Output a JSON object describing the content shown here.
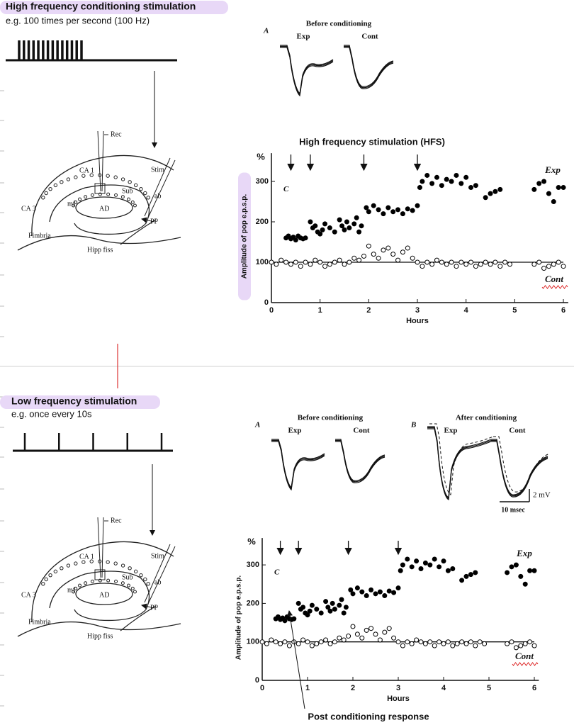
{
  "sections": [
    {
      "title": "High frequency conditioning stimulation",
      "subtitle": "e.g. 100 times per second (100 Hz)",
      "diagram": {
        "rec": "Rec",
        "ca1": "CA 1",
        "stim": "Stim",
        "sub": "Sub",
        "ab": "ab",
        "ca3": "CA 3",
        "mf": "mf",
        "ad": "AD",
        "pp": "PP",
        "fimbria": "Fimbria",
        "hipp_fiss": "Hipp fiss"
      },
      "traces": [
        {
          "panel": "A",
          "heading": "Before conditioning",
          "exp": "Exp",
          "cont": "Cont"
        }
      ]
    },
    {
      "title": "Low frequency stimulation",
      "subtitle": "e.g. once every 10s",
      "diagram": {
        "rec": "Rec",
        "ca1": "CA 1",
        "stim": "Stim",
        "sub": "Sub",
        "ab": "ab",
        "ca3": "CA 3",
        "mf": "mf",
        "ad": "AD",
        "pp": "PP",
        "fimbria": "Fimbria",
        "hipp_fiss": "Hipp fiss"
      },
      "traces": [
        {
          "panel": "A",
          "heading": "Before conditioning",
          "exp": "Exp",
          "cont": "Cont"
        },
        {
          "panel": "B",
          "heading": "After conditioning",
          "exp": "Exp",
          "cont": "Cont"
        }
      ],
      "scale_bar": {
        "voltage": "2 mV",
        "time": "10 msec"
      }
    }
  ],
  "chart_data": [
    {
      "type": "scatter",
      "title": "High frequency stimulation (HFS)",
      "panel": "C",
      "y_unit": "%",
      "x_label": "Hours",
      "y_label": "Amplitude of pop e.p.s.p.",
      "xlim": [
        0,
        6.1
      ],
      "ylim": [
        0,
        370
      ],
      "xticks": [
        0,
        1,
        2,
        3,
        4,
        5,
        6
      ],
      "yticks": [
        0,
        100,
        200,
        300
      ],
      "stimulus_times": [
        0.4,
        0.8,
        1.9,
        3.0
      ],
      "reference_line": 100,
      "series": [
        {
          "name": "Exp",
          "color": "#000000",
          "marker": "filled",
          "x": [
            0.3,
            0.35,
            0.4,
            0.45,
            0.5,
            0.55,
            0.6,
            0.65,
            0.7,
            0.8,
            0.85,
            0.9,
            0.95,
            1.0,
            1.05,
            1.1,
            1.2,
            1.3,
            1.4,
            1.45,
            1.5,
            1.55,
            1.6,
            1.7,
            1.75,
            1.8,
            1.85,
            1.95,
            2.0,
            2.1,
            2.2,
            2.3,
            2.4,
            2.5,
            2.6,
            2.7,
            2.8,
            2.9,
            3.0,
            3.05,
            3.1,
            3.2,
            3.3,
            3.4,
            3.5,
            3.6,
            3.7,
            3.8,
            3.9,
            4.0,
            4.1,
            4.2,
            4.4,
            4.5,
            4.6,
            4.7,
            5.4,
            5.5,
            5.6,
            5.7,
            5.8,
            5.9,
            6.0
          ],
          "values": [
            160,
            165,
            158,
            162,
            155,
            165,
            160,
            158,
            160,
            200,
            185,
            190,
            175,
            170,
            180,
            195,
            185,
            175,
            205,
            190,
            180,
            200,
            185,
            195,
            210,
            175,
            190,
            235,
            225,
            240,
            230,
            220,
            235,
            225,
            230,
            220,
            232,
            228,
            240,
            285,
            300,
            315,
            295,
            310,
            290,
            305,
            300,
            315,
            295,
            310,
            285,
            290,
            260,
            270,
            275,
            280,
            280,
            295,
            300,
            270,
            250,
            285,
            285
          ]
        },
        {
          "name": "Cont",
          "color": "#000000",
          "marker": "open",
          "x": [
            0.0,
            0.1,
            0.2,
            0.3,
            0.4,
            0.5,
            0.6,
            0.7,
            0.8,
            0.9,
            1.0,
            1.1,
            1.2,
            1.3,
            1.4,
            1.5,
            1.6,
            1.7,
            1.8,
            1.9,
            2.0,
            2.1,
            2.2,
            2.3,
            2.4,
            2.5,
            2.6,
            2.7,
            2.8,
            2.9,
            3.0,
            3.1,
            3.2,
            3.3,
            3.4,
            3.5,
            3.6,
            3.7,
            3.8,
            3.9,
            4.0,
            4.1,
            4.2,
            4.3,
            4.4,
            4.5,
            4.6,
            4.7,
            4.8,
            4.9,
            5.4,
            5.5,
            5.6,
            5.7,
            5.8,
            5.9,
            6.0
          ],
          "values": [
            100,
            95,
            105,
            100,
            95,
            100,
            90,
            100,
            95,
            105,
            100,
            90,
            95,
            100,
            105,
            95,
            100,
            110,
            105,
            115,
            140,
            120,
            110,
            130,
            135,
            120,
            105,
            125,
            135,
            110,
            100,
            90,
            100,
            95,
            105,
            100,
            95,
            100,
            90,
            100,
            95,
            100,
            90,
            95,
            100,
            95,
            100,
            90,
            100,
            95,
            95,
            100,
            85,
            90,
            95,
            100,
            90
          ]
        }
      ]
    },
    {
      "type": "scatter",
      "annotation": "Post conditioning response",
      "panel": "C",
      "y_unit": "%",
      "x_label": "Hours",
      "y_label": "Amplitude of pop e.p.s.p.",
      "xlim": [
        0,
        6.1
      ],
      "ylim": [
        0,
        370
      ],
      "xticks": [
        0,
        1,
        2,
        3,
        4,
        5,
        6
      ],
      "yticks": [
        0,
        100,
        200,
        300
      ],
      "stimulus_times": [
        0.4,
        0.8,
        1.9,
        3.0
      ],
      "reference_line": 100,
      "series": [
        {
          "name": "Exp",
          "color": "#000000",
          "marker": "filled",
          "x": [
            0.3,
            0.35,
            0.4,
            0.45,
            0.5,
            0.55,
            0.6,
            0.65,
            0.7,
            0.8,
            0.85,
            0.9,
            0.95,
            1.0,
            1.05,
            1.1,
            1.2,
            1.3,
            1.4,
            1.45,
            1.5,
            1.55,
            1.6,
            1.7,
            1.75,
            1.8,
            1.85,
            1.95,
            2.0,
            2.1,
            2.2,
            2.3,
            2.4,
            2.5,
            2.6,
            2.7,
            2.8,
            2.9,
            3.0,
            3.05,
            3.1,
            3.2,
            3.3,
            3.4,
            3.5,
            3.6,
            3.7,
            3.8,
            3.9,
            4.0,
            4.1,
            4.2,
            4.4,
            4.5,
            4.6,
            4.7,
            5.4,
            5.5,
            5.6,
            5.7,
            5.8,
            5.9,
            6.0
          ],
          "values": [
            160,
            165,
            158,
            162,
            155,
            165,
            160,
            158,
            160,
            200,
            185,
            190,
            175,
            170,
            180,
            195,
            185,
            175,
            205,
            190,
            180,
            200,
            185,
            195,
            210,
            175,
            190,
            235,
            225,
            240,
            230,
            220,
            235,
            225,
            230,
            220,
            232,
            228,
            240,
            285,
            300,
            315,
            295,
            310,
            290,
            305,
            300,
            315,
            295,
            310,
            285,
            290,
            260,
            270,
            275,
            280,
            280,
            295,
            300,
            270,
            250,
            285,
            285
          ]
        },
        {
          "name": "Cont",
          "color": "#000000",
          "marker": "open",
          "x": [
            0.0,
            0.1,
            0.2,
            0.3,
            0.4,
            0.5,
            0.6,
            0.7,
            0.8,
            0.9,
            1.0,
            1.1,
            1.2,
            1.3,
            1.4,
            1.5,
            1.6,
            1.7,
            1.8,
            1.9,
            2.0,
            2.1,
            2.2,
            2.3,
            2.4,
            2.5,
            2.6,
            2.7,
            2.8,
            2.9,
            3.0,
            3.1,
            3.2,
            3.3,
            3.4,
            3.5,
            3.6,
            3.7,
            3.8,
            3.9,
            4.0,
            4.1,
            4.2,
            4.3,
            4.4,
            4.5,
            4.6,
            4.7,
            4.8,
            4.9,
            5.4,
            5.5,
            5.6,
            5.7,
            5.8,
            5.9,
            6.0
          ],
          "values": [
            100,
            95,
            105,
            100,
            95,
            100,
            90,
            100,
            95,
            105,
            100,
            90,
            95,
            100,
            105,
            95,
            100,
            110,
            105,
            115,
            140,
            120,
            110,
            130,
            135,
            120,
            105,
            125,
            135,
            110,
            100,
            90,
            100,
            95,
            105,
            100,
            95,
            100,
            90,
            100,
            95,
            100,
            90,
            95,
            100,
            95,
            100,
            90,
            100,
            95,
            95,
            100,
            85,
            90,
            95,
            100,
            90
          ]
        }
      ]
    }
  ]
}
